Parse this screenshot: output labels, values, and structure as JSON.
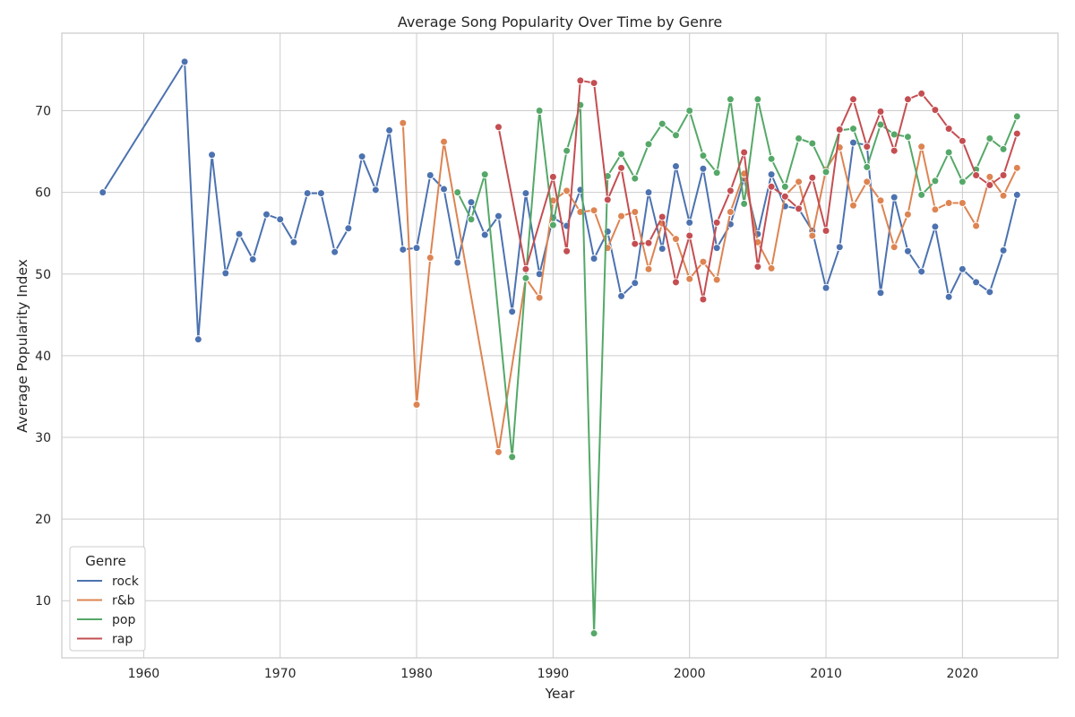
{
  "chart_data": {
    "type": "line",
    "title": "Average Song Popularity Over Time by Genre",
    "xlabel": "Year",
    "ylabel": "Average Popularity Index",
    "xlim": [
      1954,
      2027
    ],
    "ylim": [
      3,
      79.5
    ],
    "x_ticks": [
      1960,
      1970,
      1980,
      1990,
      2000,
      2010,
      2020
    ],
    "y_ticks": [
      10,
      20,
      30,
      40,
      50,
      60,
      70
    ],
    "grid": true,
    "legend": {
      "title": "Genre",
      "placement": "lower-left"
    },
    "series": [
      {
        "name": "rock",
        "color": "#4c72b0",
        "points": [
          [
            1957,
            60.0
          ],
          [
            1963,
            76.0
          ],
          [
            1964,
            42.0
          ],
          [
            1965,
            64.6
          ],
          [
            1966,
            50.1
          ],
          [
            1967,
            54.9
          ],
          [
            1968,
            51.8
          ],
          [
            1969,
            57.3
          ],
          [
            1970,
            56.7
          ],
          [
            1971,
            53.9
          ],
          [
            1972,
            59.9
          ],
          [
            1973,
            59.9
          ],
          [
            1974,
            52.7
          ],
          [
            1975,
            55.6
          ],
          [
            1976,
            64.4
          ],
          [
            1977,
            60.3
          ],
          [
            1978,
            67.6
          ],
          [
            1979,
            53.0
          ],
          [
            1980,
            53.2
          ],
          [
            1981,
            62.1
          ],
          [
            1982,
            60.4
          ],
          [
            1983,
            51.4
          ],
          [
            1984,
            58.8
          ],
          [
            1985,
            54.8
          ],
          [
            1986,
            57.1
          ],
          [
            1987,
            45.4
          ],
          [
            1988,
            59.9
          ],
          [
            1989,
            50.0
          ],
          [
            1990,
            56.9
          ],
          [
            1991,
            55.9
          ],
          [
            1992,
            60.3
          ],
          [
            1993,
            51.9
          ],
          [
            1994,
            55.2
          ],
          [
            1995,
            47.3
          ],
          [
            1996,
            48.9
          ],
          [
            1997,
            60.0
          ],
          [
            1998,
            53.1
          ],
          [
            1999,
            63.2
          ],
          [
            2000,
            56.3
          ],
          [
            2001,
            62.9
          ],
          [
            2002,
            53.2
          ],
          [
            2003,
            56.1
          ],
          [
            2004,
            61.7
          ],
          [
            2005,
            54.9
          ],
          [
            2006,
            62.2
          ],
          [
            2007,
            58.3
          ],
          [
            2008,
            58.0
          ],
          [
            2009,
            55.3
          ],
          [
            2010,
            48.3
          ],
          [
            2011,
            53.3
          ],
          [
            2012,
            66.1
          ],
          [
            2013,
            65.8
          ],
          [
            2014,
            47.7
          ],
          [
            2015,
            59.4
          ],
          [
            2016,
            52.8
          ],
          [
            2017,
            50.3
          ],
          [
            2018,
            55.8
          ],
          [
            2019,
            47.2
          ],
          [
            2020,
            50.6
          ],
          [
            2021,
            49.0
          ],
          [
            2022,
            47.8
          ],
          [
            2023,
            52.9
          ],
          [
            2024,
            59.7
          ]
        ]
      },
      {
        "name": "r&b",
        "color": "#dd8452",
        "points": [
          [
            1979,
            68.5
          ],
          [
            1980,
            34.0
          ],
          [
            1981,
            52.0
          ],
          [
            1982,
            66.2
          ],
          [
            1986,
            28.2
          ],
          [
            1988,
            49.5
          ],
          [
            1989,
            47.1
          ],
          [
            1990,
            59.0
          ],
          [
            1991,
            60.2
          ],
          [
            1992,
            57.6
          ],
          [
            1993,
            57.8
          ],
          [
            1994,
            53.2
          ],
          [
            1995,
            57.1
          ],
          [
            1996,
            57.6
          ],
          [
            1997,
            50.6
          ],
          [
            1998,
            56.2
          ],
          [
            1999,
            54.3
          ],
          [
            2000,
            49.4
          ],
          [
            2001,
            51.5
          ],
          [
            2002,
            49.3
          ],
          [
            2003,
            57.6
          ],
          [
            2004,
            62.3
          ],
          [
            2005,
            53.9
          ],
          [
            2006,
            50.7
          ],
          [
            2007,
            59.6
          ],
          [
            2008,
            61.3
          ],
          [
            2009,
            54.7
          ],
          [
            2010,
            62.8
          ],
          [
            2011,
            65.5
          ],
          [
            2012,
            58.4
          ],
          [
            2013,
            61.3
          ],
          [
            2014,
            59.0
          ],
          [
            2015,
            53.3
          ],
          [
            2016,
            57.3
          ],
          [
            2017,
            65.6
          ],
          [
            2018,
            57.9
          ],
          [
            2019,
            58.7
          ],
          [
            2020,
            58.7
          ],
          [
            2021,
            55.9
          ],
          [
            2022,
            61.9
          ],
          [
            2023,
            59.6
          ],
          [
            2024,
            63.0
          ]
        ]
      },
      {
        "name": "pop",
        "color": "#55a868",
        "points": [
          [
            1983,
            60.0
          ],
          [
            1984,
            56.7
          ],
          [
            1985,
            62.2
          ],
          [
            1987,
            27.6
          ],
          [
            1988,
            49.5
          ],
          [
            1989,
            70.0
          ],
          [
            1990,
            56.0
          ],
          [
            1991,
            65.1
          ],
          [
            1992,
            70.7
          ],
          [
            1993,
            6.0
          ],
          [
            1994,
            62.0
          ],
          [
            1995,
            64.7
          ],
          [
            1996,
            61.7
          ],
          [
            1997,
            65.9
          ],
          [
            1998,
            68.4
          ],
          [
            1999,
            67.0
          ],
          [
            2000,
            70.0
          ],
          [
            2001,
            64.5
          ],
          [
            2002,
            62.4
          ],
          [
            2003,
            71.4
          ],
          [
            2004,
            58.6
          ],
          [
            2005,
            71.4
          ],
          [
            2006,
            64.1
          ],
          [
            2007,
            60.7
          ],
          [
            2008,
            66.6
          ],
          [
            2009,
            66.0
          ],
          [
            2010,
            62.5
          ],
          [
            2011,
            67.6
          ],
          [
            2012,
            67.8
          ],
          [
            2013,
            63.1
          ],
          [
            2014,
            68.3
          ],
          [
            2015,
            67.1
          ],
          [
            2016,
            66.8
          ],
          [
            2017,
            59.7
          ],
          [
            2018,
            61.4
          ],
          [
            2019,
            64.9
          ],
          [
            2020,
            61.3
          ],
          [
            2021,
            62.8
          ],
          [
            2022,
            66.6
          ],
          [
            2023,
            65.3
          ],
          [
            2024,
            69.3
          ]
        ]
      },
      {
        "name": "rap",
        "color": "#c44e52",
        "points": [
          [
            1986,
            68.0
          ],
          [
            1988,
            50.6
          ],
          [
            1990,
            61.9
          ],
          [
            1991,
            52.8
          ],
          [
            1992,
            73.7
          ],
          [
            1993,
            73.4
          ],
          [
            1994,
            59.1
          ],
          [
            1995,
            63.0
          ],
          [
            1996,
            53.7
          ],
          [
            1997,
            53.8
          ],
          [
            1998,
            57.0
          ],
          [
            1999,
            49.0
          ],
          [
            2000,
            54.7
          ],
          [
            2001,
            46.9
          ],
          [
            2002,
            56.3
          ],
          [
            2003,
            60.2
          ],
          [
            2004,
            64.9
          ],
          [
            2005,
            50.9
          ],
          [
            2006,
            60.7
          ],
          [
            2007,
            59.5
          ],
          [
            2008,
            58.0
          ],
          [
            2009,
            61.8
          ],
          [
            2010,
            55.3
          ],
          [
            2011,
            67.7
          ],
          [
            2012,
            71.4
          ],
          [
            2013,
            65.6
          ],
          [
            2014,
            69.9
          ],
          [
            2015,
            65.1
          ],
          [
            2016,
            71.4
          ],
          [
            2017,
            72.1
          ],
          [
            2018,
            70.1
          ],
          [
            2019,
            67.8
          ],
          [
            2020,
            66.3
          ],
          [
            2021,
            62.1
          ],
          [
            2022,
            60.9
          ],
          [
            2023,
            62.1
          ],
          [
            2024,
            67.2
          ]
        ]
      }
    ]
  }
}
